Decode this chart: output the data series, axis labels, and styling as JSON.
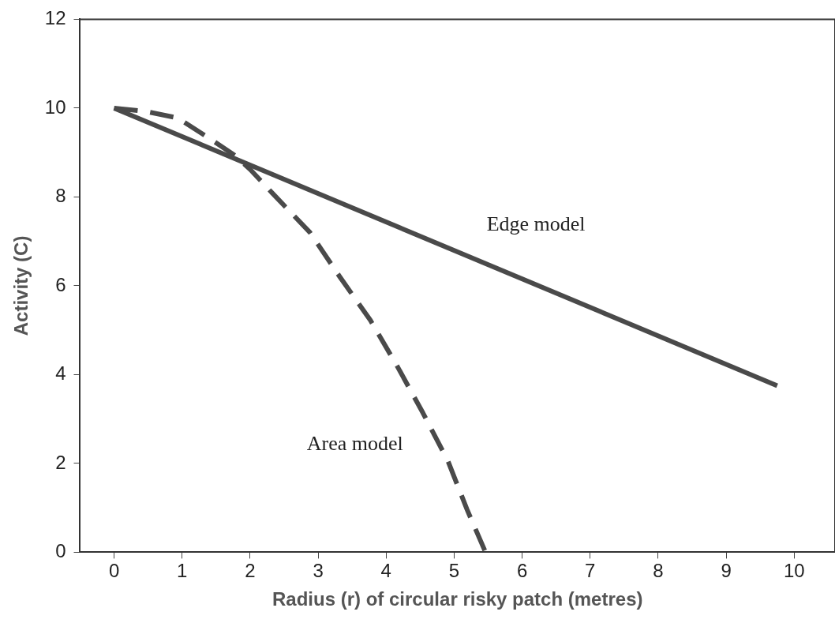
{
  "chart_data": {
    "type": "line",
    "xlabel": "Radius (r) of circular risky patch (metres)",
    "ylabel": "Activity (C)",
    "xlim": [
      -0.5,
      10.6
    ],
    "xticks": [
      0,
      1,
      2,
      3,
      4,
      5,
      6,
      7,
      8,
      9,
      10
    ],
    "ylim": [
      0,
      12
    ],
    "yticks": [
      0,
      2,
      4,
      6,
      8,
      10,
      12
    ],
    "grid": false,
    "legend": false,
    "marker": "none",
    "series": [
      {
        "name": "Edge model",
        "color": "#4a4a4a",
        "line_style": "solid",
        "x": [
          0,
          9.75
        ],
        "values": [
          10,
          3.75
        ]
      },
      {
        "name": "Area model",
        "color": "#4a4a4a",
        "line_style": "dashed",
        "x": [
          0,
          0.45,
          0.93,
          1.4,
          1.78,
          2.0,
          2.33,
          2.88,
          3.31,
          3.77,
          4.17,
          4.54,
          4.91,
          5.19,
          5.45
        ],
        "values": [
          10,
          9.93,
          9.78,
          9.32,
          8.93,
          8.62,
          8.08,
          7.2,
          6.22,
          5.22,
          4.17,
          3.14,
          2.05,
          0.96,
          0.04
        ]
      }
    ]
  }
}
